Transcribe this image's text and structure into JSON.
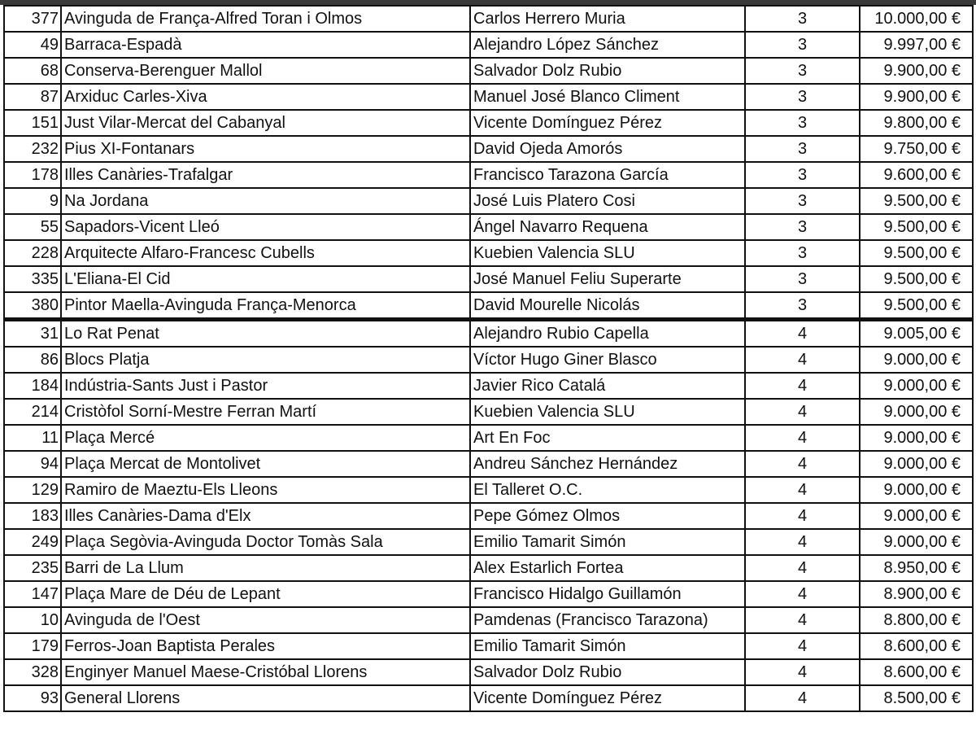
{
  "rows": [
    {
      "id": "377",
      "name": "Avinguda de França-Alfred Toran i Olmos",
      "artist": "Carlos Herrero Muria",
      "category": "3",
      "amount": "10.000,00 €"
    },
    {
      "id": "49",
      "name": "Barraca-Espadà",
      "artist": "Alejandro López Sánchez",
      "category": "3",
      "amount": "9.997,00 €"
    },
    {
      "id": "68",
      "name": "Conserva-Berenguer Mallol",
      "artist": "Salvador Dolz Rubio",
      "category": "3",
      "amount": "9.900,00 €"
    },
    {
      "id": "87",
      "name": "Arxiduc Carles-Xiva",
      "artist": "Manuel José Blanco Climent",
      "category": "3",
      "amount": "9.900,00 €"
    },
    {
      "id": "151",
      "name": "Just Vilar-Mercat del Cabanyal",
      "artist": "Vicente Domínguez Pérez",
      "category": "3",
      "amount": "9.800,00 €"
    },
    {
      "id": "232",
      "name": "Pius XI-Fontanars",
      "artist": "David Ojeda Amorós",
      "category": "3",
      "amount": "9.750,00 €"
    },
    {
      "id": "178",
      "name": "Illes Canàries-Trafalgar",
      "artist": "Francisco Tarazona García",
      "category": "3",
      "amount": "9.600,00 €"
    },
    {
      "id": "9",
      "name": "Na Jordana",
      "artist": "José Luis Platero Cosi",
      "category": "3",
      "amount": "9.500,00 €"
    },
    {
      "id": "55",
      "name": "Sapadors-Vicent Lleó",
      "artist": "Ángel Navarro Requena",
      "category": "3",
      "amount": "9.500,00 €"
    },
    {
      "id": "228",
      "name": "Arquitecte Alfaro-Francesc Cubells",
      "artist": "Kuebien Valencia SLU",
      "category": "3",
      "amount": "9.500,00 €"
    },
    {
      "id": "335",
      "name": "L'Eliana-El Cid",
      "artist": "José Manuel Feliu Superarte",
      "category": "3",
      "amount": "9.500,00 €"
    },
    {
      "id": "380",
      "name": "Pintor Maella-Avinguda França-Menorca",
      "artist": "David Mourelle Nicolás",
      "category": "3",
      "amount": "9.500,00 €"
    },
    {
      "id": "31",
      "name": "Lo Rat Penat",
      "artist": "Alejandro Rubio Capella",
      "category": "4",
      "amount": "9.005,00 €"
    },
    {
      "id": "86",
      "name": "Blocs Platja",
      "artist": "Víctor Hugo Giner Blasco",
      "category": "4",
      "amount": "9.000,00 €"
    },
    {
      "id": "184",
      "name": "Indústria-Sants Just i Pastor",
      "artist": "Javier Rico Catalá",
      "category": "4",
      "amount": "9.000,00 €"
    },
    {
      "id": "214",
      "name": "Cristòfol Sorní-Mestre Ferran Martí",
      "artist": "Kuebien Valencia SLU",
      "category": "4",
      "amount": "9.000,00 €"
    },
    {
      "id": "11",
      "name": "Plaça Mercé",
      "artist": "Art En Foc",
      "category": "4",
      "amount": "9.000,00 €"
    },
    {
      "id": "94",
      "name": "Plaça Mercat de Montolivet",
      "artist": "Andreu Sánchez Hernández",
      "category": "4",
      "amount": "9.000,00 €"
    },
    {
      "id": "129",
      "name": "Ramiro de Maeztu-Els Lleons",
      "artist": "El Talleret O.C.",
      "category": "4",
      "amount": "9.000,00 €"
    },
    {
      "id": "183",
      "name": "Illes Canàries-Dama d'Elx",
      "artist": "Pepe Gómez Olmos",
      "category": "4",
      "amount": "9.000,00 €"
    },
    {
      "id": "249",
      "name": "Plaça Segòvia-Avinguda Doctor Tomàs Sala",
      "artist": "Emilio Tamarit Simón",
      "category": "4",
      "amount": "9.000,00 €"
    },
    {
      "id": "235",
      "name": "Barri de La Llum",
      "artist": "Alex Estarlich Fortea",
      "category": "4",
      "amount": "8.950,00 €"
    },
    {
      "id": "147",
      "name": "Plaça Mare de Déu de Lepant",
      "artist": "Francisco Hidalgo Guillamón",
      "category": "4",
      "amount": "8.900,00 €"
    },
    {
      "id": "10",
      "name": "Avinguda de l'Oest",
      "artist": "Pamdenas (Francisco Tarazona)",
      "category": "4",
      "amount": "8.800,00 €"
    },
    {
      "id": "179",
      "name": "Ferros-Joan Baptista Perales",
      "artist": "Emilio Tamarit Simón",
      "category": "4",
      "amount": "8.600,00 €"
    },
    {
      "id": "328",
      "name": "Enginyer Manuel Maese-Cristóbal Llorens",
      "artist": "Salvador Dolz Rubio",
      "category": "4",
      "amount": "8.600,00 €"
    },
    {
      "id": "93",
      "name": "General Llorens",
      "artist": "Vicente Domínguez Pérez",
      "category": "4",
      "amount": "8.500,00 €"
    }
  ]
}
